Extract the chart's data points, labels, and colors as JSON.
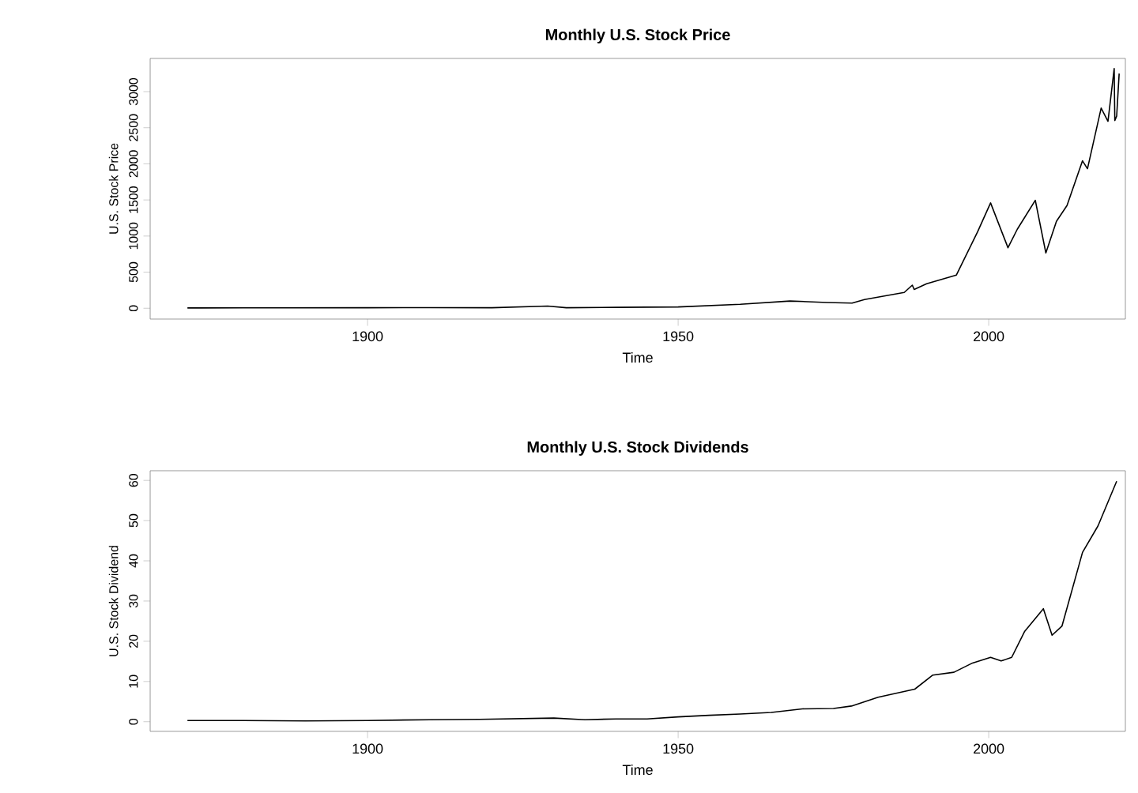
{
  "chart_data": [
    {
      "type": "line",
      "title": "Monthly U.S. Stock Price",
      "xlabel": "Time",
      "ylabel": "U.S. Stock Price",
      "color": "#000000",
      "x": [
        1871,
        1880,
        1900,
        1910,
        1920,
        1929,
        1932,
        1940,
        1950,
        1960,
        1968,
        1974,
        1978,
        1980,
        1986.4,
        1987.7,
        1988,
        1990,
        1994.8,
        1998.2,
        2000.3,
        2003.1,
        2004.6,
        2007.5,
        2009.2,
        2010.9,
        2012.6,
        2015.1,
        2015.9,
        2018.1,
        2019.2,
        2019.6,
        2020.2,
        2020.3,
        2020.6,
        2021
      ],
      "values": [
        4,
        5,
        7,
        9,
        7,
        30,
        7,
        12,
        18,
        55,
        100,
        80,
        72,
        120,
        219,
        320,
        260,
        340,
        460,
        1057,
        1459,
        838,
        1094,
        1495,
        766,
        1203,
        1422,
        2042,
        1932,
        2772,
        2589,
        2882,
        3320,
        2600,
        2663,
        3250
      ],
      "xlim": [
        1865,
        2022
      ],
      "ylim": [
        -150,
        3460
      ],
      "xticks": [
        1900,
        1950,
        2000
      ],
      "yticks": [
        0,
        500,
        1000,
        1500,
        2000,
        2500,
        3000
      ]
    },
    {
      "type": "line",
      "title": "Monthly U.S. Stock Dividends",
      "xlabel": "Time",
      "ylabel": "U.S. Stock Dividend",
      "color": "#000000",
      "x": [
        1871,
        1880,
        1890,
        1900,
        1910,
        1918,
        1930,
        1935,
        1940,
        1945,
        1950,
        1955,
        1960,
        1965,
        1970,
        1975,
        1977.9,
        1982.2,
        1988.1,
        1991,
        1994.4,
        1997.4,
        2000.3,
        2002,
        2003.7,
        2005.8,
        2008.8,
        2010.2,
        2011.8,
        2015.1,
        2017.6,
        2020.6
      ],
      "values": [
        0.3,
        0.3,
        0.2,
        0.3,
        0.5,
        0.6,
        0.9,
        0.5,
        0.7,
        0.7,
        1.2,
        1.6,
        1.9,
        2.3,
        3.2,
        3.3,
        3.9,
        6.1,
        8.1,
        11.6,
        12.3,
        14.6,
        16,
        15.1,
        16,
        22.5,
        28.1,
        21.5,
        23.8,
        42.1,
        48.7,
        59.8
      ],
      "xlim": [
        1865,
        2022
      ],
      "ylim": [
        -2.4,
        62.4
      ],
      "xticks": [
        1900,
        1950,
        2000
      ],
      "yticks": [
        0,
        10,
        20,
        30,
        40,
        50,
        60
      ]
    }
  ]
}
